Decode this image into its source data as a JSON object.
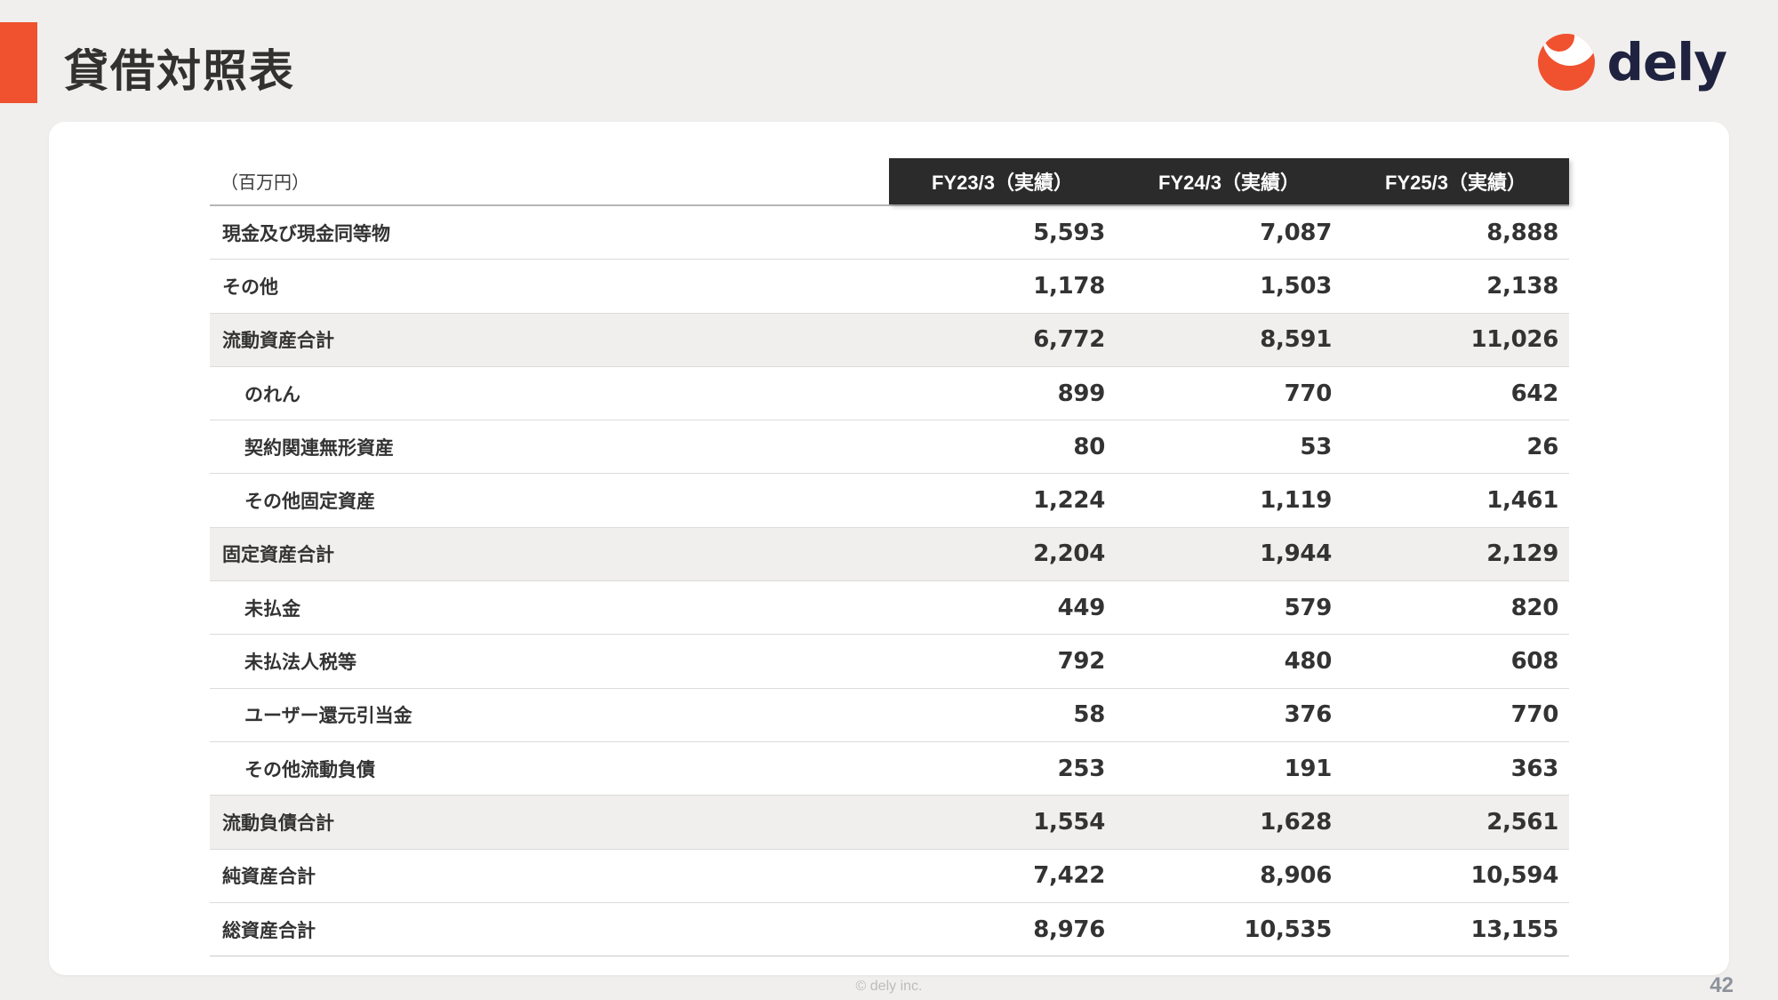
{
  "header": {
    "title": "貸借対照表",
    "logo_text": "dely"
  },
  "table": {
    "unit_label": "（百万円）",
    "columns": [
      "FY23/3（実績）",
      "FY24/3（実績）",
      "FY25/3（実績）"
    ],
    "rows": [
      {
        "label": "現金及び現金同等物",
        "indent": false,
        "total": false,
        "values": [
          "5,593",
          "7,087",
          "8,888"
        ]
      },
      {
        "label": "その他",
        "indent": false,
        "total": false,
        "values": [
          "1,178",
          "1,503",
          "2,138"
        ]
      },
      {
        "label": "流動資産合計",
        "indent": false,
        "total": true,
        "values": [
          "6,772",
          "8,591",
          "11,026"
        ]
      },
      {
        "label": "のれん",
        "indent": true,
        "total": false,
        "values": [
          "899",
          "770",
          "642"
        ]
      },
      {
        "label": "契約関連無形資産",
        "indent": true,
        "total": false,
        "values": [
          "80",
          "53",
          "26"
        ]
      },
      {
        "label": "その他固定資産",
        "indent": true,
        "total": false,
        "values": [
          "1,224",
          "1,119",
          "1,461"
        ]
      },
      {
        "label": "固定資産合計",
        "indent": false,
        "total": true,
        "values": [
          "2,204",
          "1,944",
          "2,129"
        ]
      },
      {
        "label": "未払金",
        "indent": true,
        "total": false,
        "values": [
          "449",
          "579",
          "820"
        ]
      },
      {
        "label": "未払法人税等",
        "indent": true,
        "total": false,
        "values": [
          "792",
          "480",
          "608"
        ]
      },
      {
        "label": "ユーザー還元引当金",
        "indent": true,
        "total": false,
        "values": [
          "58",
          "376",
          "770"
        ]
      },
      {
        "label": "その他流動負債",
        "indent": true,
        "total": false,
        "values": [
          "253",
          "191",
          "363"
        ]
      },
      {
        "label": "流動負債合計",
        "indent": false,
        "total": true,
        "values": [
          "1,554",
          "1,628",
          "2,561"
        ]
      },
      {
        "label": "純資産合計",
        "indent": false,
        "total": false,
        "values": [
          "7,422",
          "8,906",
          "10,594"
        ]
      },
      {
        "label": "総資産合計",
        "indent": false,
        "total": false,
        "values": [
          "8,976",
          "10,535",
          "13,155"
        ]
      }
    ]
  },
  "footer": {
    "copyright": "© dely inc.",
    "page_number": "42"
  },
  "colors": {
    "accent_orange": "#F0512F",
    "logo_navy": "#1F2340",
    "header_dark": "#2b2b2b",
    "page_background": "#f0efed",
    "total_row_background": "#f0efed"
  }
}
